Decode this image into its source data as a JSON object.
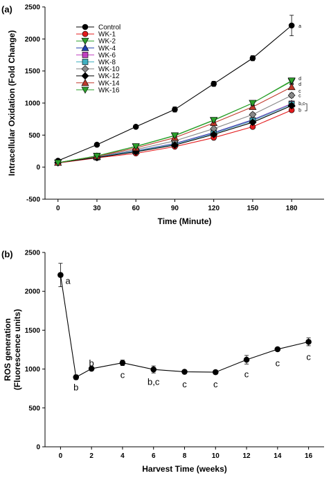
{
  "chart_data": [
    {
      "panel": "(a)",
      "type": "line",
      "xlabel": "Time (Minute)",
      "ylabel": "Intracellular Oxidation (Fold Change)",
      "x": [
        0,
        30,
        60,
        90,
        120,
        150,
        180
      ],
      "xticks": [
        "0",
        "30",
        "60",
        "90",
        "120",
        "150",
        "180"
      ],
      "xlim": [
        -10,
        205
      ],
      "yticks": [
        "-500",
        "0",
        "500",
        "1000",
        "1500",
        "2000",
        "2500"
      ],
      "ylim": [
        -500,
        2500
      ],
      "grid": false,
      "legend": "top-left",
      "series": [
        {
          "name": "Control",
          "color": "#000000",
          "marker": "circle",
          "values": [
            100,
            350,
            630,
            900,
            1300,
            1700,
            2210
          ],
          "err": [
            15,
            20,
            25,
            40,
            40,
            40,
            160
          ]
        },
        {
          "name": "WK-1",
          "color": "#e31a1c",
          "marker": "circle",
          "values": [
            65,
            145,
            215,
            320,
            460,
            630,
            890
          ],
          "err": [
            10,
            10,
            15,
            15,
            20,
            20,
            25
          ]
        },
        {
          "name": "WK-2",
          "color": "#2ca02c",
          "marker": "triangle-down",
          "values": [
            70,
            175,
            320,
            490,
            730,
            1000,
            1340
          ],
          "err": [
            10,
            15,
            20,
            25,
            30,
            35,
            40
          ]
        },
        {
          "name": "WK-4",
          "color": "#1f3fae",
          "marker": "triangle-up",
          "values": [
            70,
            160,
            255,
            370,
            540,
            740,
            990
          ],
          "err": [
            10,
            15,
            15,
            20,
            25,
            30,
            35
          ]
        },
        {
          "name": "WK-6",
          "color": "#c040c0",
          "marker": "square",
          "values": [
            70,
            155,
            250,
            365,
            530,
            730,
            990
          ],
          "err": [
            10,
            15,
            15,
            20,
            25,
            30,
            35
          ]
        },
        {
          "name": "WK-8",
          "color": "#40b0c0",
          "marker": "square",
          "values": [
            70,
            155,
            250,
            360,
            525,
            725,
            980
          ],
          "err": [
            10,
            15,
            15,
            20,
            25,
            30,
            35
          ]
        },
        {
          "name": "WK-10",
          "color": "#888888",
          "marker": "diamond",
          "values": [
            70,
            165,
            275,
            410,
            600,
            820,
            1120
          ],
          "err": [
            10,
            15,
            20,
            25,
            30,
            30,
            35
          ]
        },
        {
          "name": "WK-12",
          "color": "#000000",
          "marker": "diamond",
          "values": [
            70,
            150,
            240,
            345,
            510,
            700,
            960
          ],
          "err": [
            10,
            10,
            15,
            20,
            25,
            30,
            35
          ]
        },
        {
          "name": "WK-14",
          "color": "#c0392b",
          "marker": "triangle-up",
          "values": [
            70,
            170,
            300,
            460,
            690,
            940,
            1250
          ],
          "err": [
            10,
            15,
            20,
            25,
            30,
            30,
            35
          ]
        },
        {
          "name": "WK-16",
          "color": "#2ca02c",
          "marker": "triangle-down",
          "values": [
            70,
            175,
            325,
            495,
            735,
            1000,
            1350
          ],
          "err": [
            10,
            15,
            20,
            25,
            30,
            35,
            40
          ]
        }
      ],
      "annotations": [
        {
          "text": "a",
          "x": 180,
          "y": 2210
        },
        {
          "text": "d",
          "x": 180,
          "y": 1390
        },
        {
          "text": "d",
          "x": 180,
          "y": 1300
        },
        {
          "text": "c",
          "x": 180,
          "y": 1195
        },
        {
          "text": "c",
          "x": 180,
          "y": 1125
        },
        {
          "text": "b,c",
          "x": 180,
          "y": 1000
        },
        {
          "text": "b",
          "x": 180,
          "y": 900
        }
      ]
    },
    {
      "panel": "(b)",
      "type": "line",
      "xlabel": "Harvest Time (weeks)",
      "ylabel_lines": [
        "ROS generation",
        "(Fluorescence units)"
      ],
      "x": [
        0,
        1,
        2,
        4,
        6,
        8,
        10,
        12,
        14,
        16
      ],
      "xticks": [
        "0",
        "2",
        "4",
        "6",
        "8",
        "10",
        "12",
        "14",
        "16"
      ],
      "xtick_values": [
        0,
        2,
        4,
        6,
        8,
        10,
        12,
        14,
        16
      ],
      "xlim": [
        -1,
        17
      ],
      "yticks": [
        "0",
        "500",
        "1000",
        "1500",
        "2000",
        "2500"
      ],
      "ylim": [
        0,
        2500
      ],
      "grid": false,
      "series": [
        {
          "name": "",
          "color": "#000000",
          "marker": "circle",
          "values": [
            2210,
            895,
            1005,
            1080,
            995,
            965,
            960,
            1120,
            1255,
            1350
          ],
          "err": [
            150,
            30,
            25,
            35,
            45,
            20,
            25,
            55,
            20,
            50
          ]
        }
      ],
      "annotations": [
        {
          "text": "a",
          "x": 0.3,
          "y": 2140
        },
        {
          "text": "b",
          "x": 1,
          "y": 770
        },
        {
          "text": "b",
          "x": 2,
          "y": 1080
        },
        {
          "text": "c",
          "x": 4,
          "y": 930
        },
        {
          "text": "b,c",
          "x": 6,
          "y": 840
        },
        {
          "text": "c",
          "x": 8,
          "y": 810
        },
        {
          "text": "c",
          "x": 10,
          "y": 810
        },
        {
          "text": "c",
          "x": 12,
          "y": 940
        },
        {
          "text": "c",
          "x": 14,
          "y": 1080
        },
        {
          "text": "c",
          "x": 16,
          "y": 1160
        }
      ]
    }
  ]
}
